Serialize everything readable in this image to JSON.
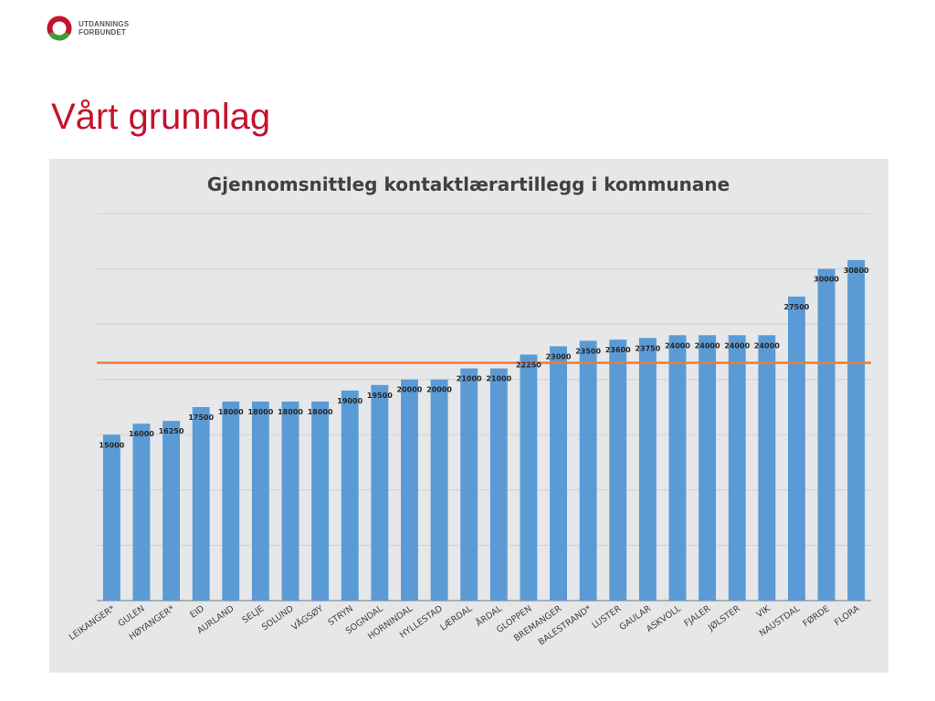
{
  "header": {
    "logo_line1": "UTDANNINGS",
    "logo_line2": "FORBUNDET",
    "logo_colors": {
      "ring_red": "#c4122f",
      "ring_green": "#3f9c35"
    }
  },
  "slide": {
    "title": "Vårt grunnlag"
  },
  "chart_data": {
    "type": "bar",
    "title": "Gjennomsnittleg kontaktlærartillegg i kommunane",
    "xlabel": "",
    "ylabel": "",
    "ylim": [
      0,
      35000
    ],
    "grid": true,
    "bar_color": "#5b9bd5",
    "reference_line": {
      "value": 21500,
      "color": "#ed7d31"
    },
    "categories": [
      "LEIKANGER*",
      "GULEN",
      "HØYANGER*",
      "EID",
      "AURLAND",
      "SELJE",
      "SOLUND",
      "VÅGSØY",
      "STRYN",
      "SOGNDAL",
      "HORNINDAL",
      "HYLLESTAD",
      "LÆRDAL",
      "ÅRDAL",
      "GLOPPEN",
      "BREMANGER",
      "BALESTRAND*",
      "LUSTER",
      "GAULAR",
      "ASKVOLL",
      "FJALER",
      "JØLSTER",
      "VIK",
      "NAUSTDAL",
      "FØRDE",
      "FLORA"
    ],
    "values": [
      15000,
      16000,
      16250,
      17500,
      18000,
      18000,
      18000,
      18000,
      19000,
      19500,
      20000,
      20000,
      21000,
      21000,
      22250,
      23000,
      23500,
      23600,
      23750,
      24000,
      24000,
      24000,
      24000,
      27500,
      30000,
      30800
    ],
    "data_labels": [
      "15000",
      "16000",
      "16250",
      "17500",
      "18000",
      "18000",
      "18000",
      "18000",
      "19000",
      "19500",
      "20000",
      "20000",
      "21000",
      "21000",
      "22250",
      "23000",
      "23500",
      "23600",
      "23750",
      "24000",
      "24000",
      "24000",
      "24000",
      "27500",
      "30000",
      "30800"
    ]
  }
}
